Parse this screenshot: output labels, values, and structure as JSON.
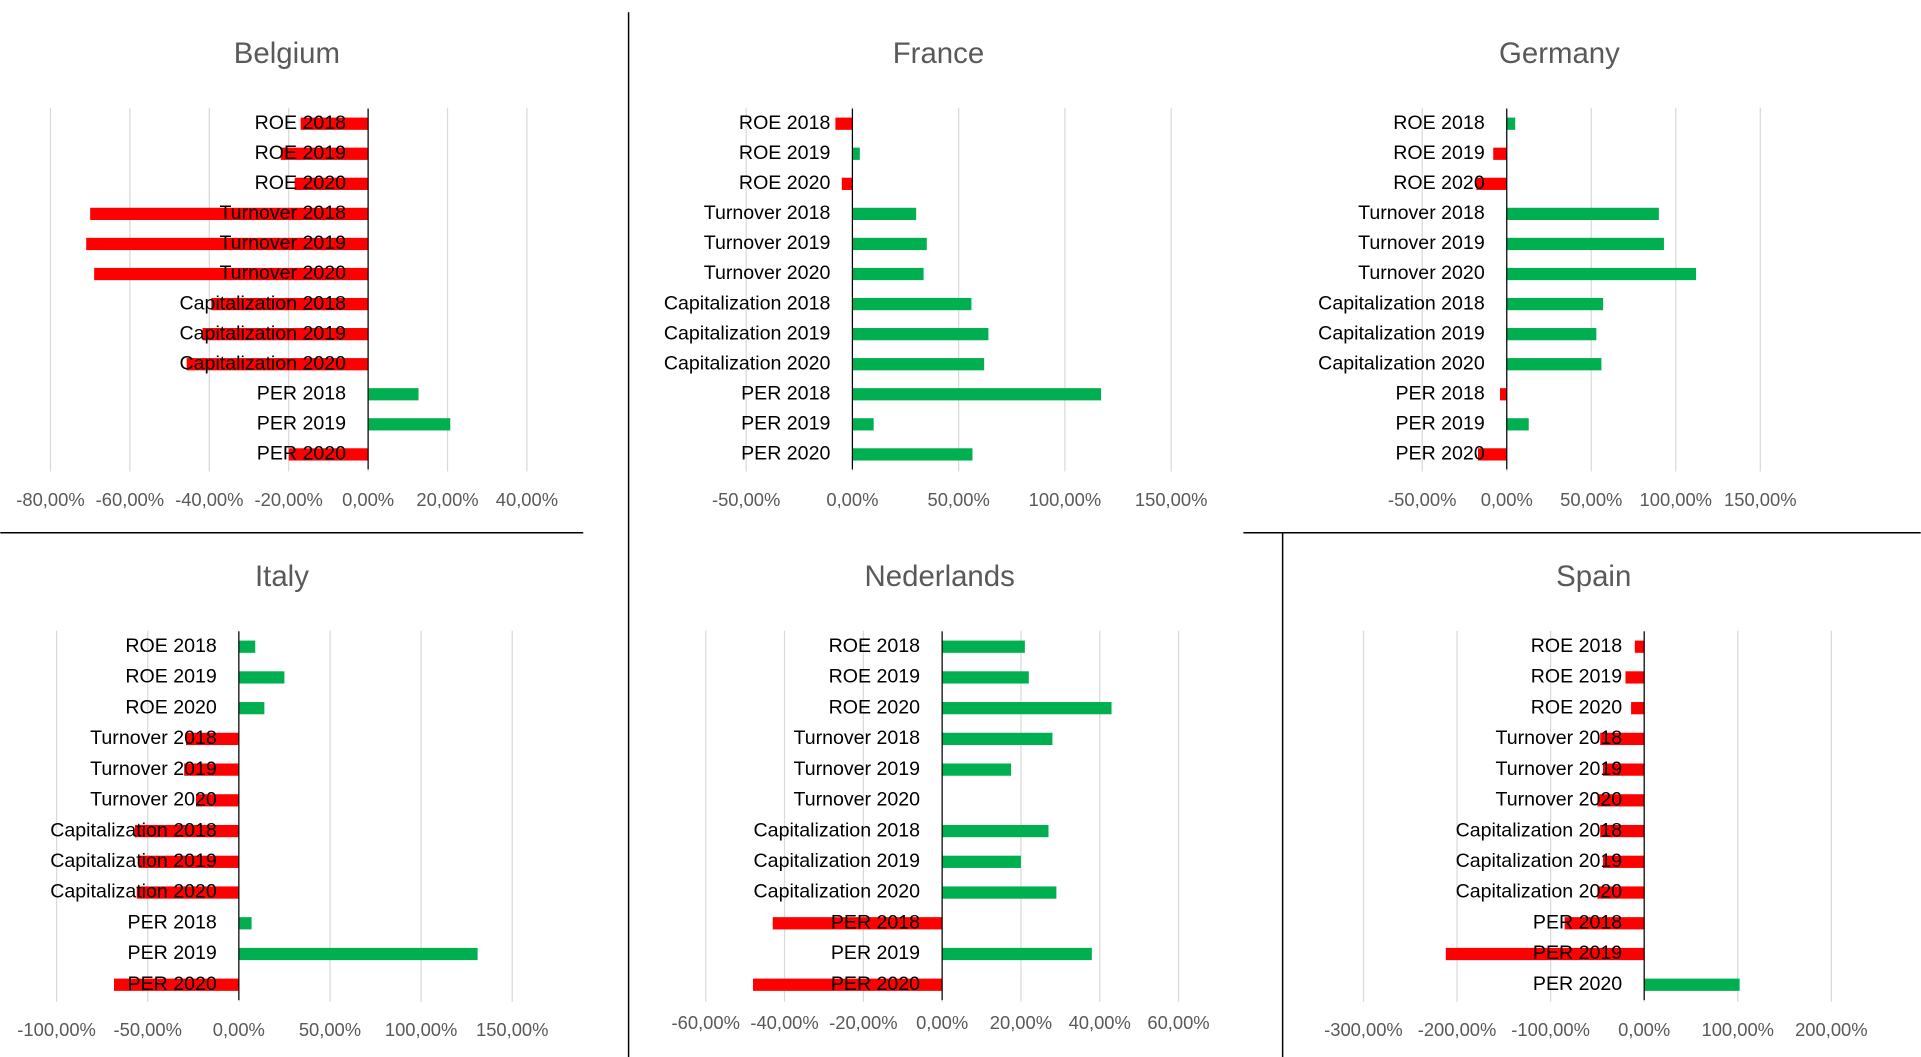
{
  "chart_data": [
    {
      "type": "bar",
      "orientation": "horizontal",
      "title": "Belgium",
      "categories": [
        "ROE 2018",
        "ROE 2019",
        "ROE 2020",
        "Turnover 2018",
        "Turnover 2019",
        "Turnover 2020",
        "Capitalization 2018",
        "Capitalization 2019",
        "Capitalization 2020",
        "PER 2018",
        "PER 2019",
        "PER 2020"
      ],
      "values": [
        -17,
        -22,
        -18.5,
        -70,
        -71,
        -69,
        -39.5,
        -41.7,
        -45.7,
        12.7,
        20.7,
        -20
      ],
      "positive_color": "#00b050",
      "negative_color": "#ff0000",
      "grid": true,
      "xlim": [
        -80,
        40
      ],
      "xticks": [
        {
          "value": -80,
          "label": "-80,00%"
        },
        {
          "value": -60,
          "label": "-60,00%"
        },
        {
          "value": -40,
          "label": "-40,00%"
        },
        {
          "value": -20,
          "label": "-20,00%"
        },
        {
          "value": 0,
          "label": "0,00%"
        },
        {
          "value": 20,
          "label": "20,00%"
        },
        {
          "value": 40,
          "label": "40,00%"
        }
      ]
    },
    {
      "type": "bar",
      "orientation": "horizontal",
      "title": "France",
      "categories": [
        "ROE 2018",
        "ROE 2019",
        "ROE 2020",
        "Turnover 2018",
        "Turnover 2019",
        "Turnover 2020",
        "Capitalization 2018",
        "Capitalization 2019",
        "Capitalization 2020",
        "PER 2018",
        "PER 2019",
        "PER 2020"
      ],
      "values": [
        -8,
        3.5,
        -5,
        30,
        35,
        33.5,
        56,
        64,
        62,
        117,
        10,
        56.5
      ],
      "positive_color": "#00b050",
      "negative_color": "#ff0000",
      "grid": true,
      "xlim": [
        -50,
        150
      ],
      "xticks": [
        {
          "value": -50,
          "label": "-50,00%"
        },
        {
          "value": 0,
          "label": "0,00%"
        },
        {
          "value": 50,
          "label": "50,00%"
        },
        {
          "value": 100,
          "label": "100,00%"
        },
        {
          "value": 150,
          "label": "150,00%"
        }
      ]
    },
    {
      "type": "bar",
      "orientation": "horizontal",
      "title": "Germany",
      "categories": [
        "ROE 2018",
        "ROE 2019",
        "ROE 2020",
        "Turnover 2018",
        "Turnover 2019",
        "Turnover 2020",
        "Capitalization 2018",
        "Capitalization 2019",
        "Capitalization 2020",
        "PER 2018",
        "PER 2019",
        "PER 2020"
      ],
      "values": [
        5,
        -8,
        -18,
        90,
        93,
        112,
        57,
        53,
        56,
        -4,
        13,
        -17
      ],
      "positive_color": "#00b050",
      "negative_color": "#ff0000",
      "grid": true,
      "xlim": [
        -50,
        150
      ],
      "xticks": [
        {
          "value": -50,
          "label": "-50,00%"
        },
        {
          "value": 0,
          "label": "0,00%"
        },
        {
          "value": 50,
          "label": "50,00%"
        },
        {
          "value": 100,
          "label": "100,00%"
        },
        {
          "value": 150,
          "label": "150,00%"
        }
      ]
    },
    {
      "type": "bar",
      "orientation": "horizontal",
      "title": "Italy",
      "categories": [
        "ROE 2018",
        "ROE 2019",
        "ROE 2020",
        "Turnover 2018",
        "Turnover 2019",
        "Turnover 2020",
        "Capitalization 2018",
        "Capitalization 2019",
        "Capitalization 2020",
        "PER 2018",
        "PER 2019",
        "PER 2020"
      ],
      "values": [
        9,
        25,
        14,
        -29,
        -30,
        -23.5,
        -57,
        -55,
        -56,
        7,
        131,
        -68.5
      ],
      "positive_color": "#00b050",
      "negative_color": "#ff0000",
      "grid": true,
      "xlim": [
        -100,
        150
      ],
      "xticks": [
        {
          "value": -100,
          "label": "-100,00%"
        },
        {
          "value": -50,
          "label": "-50,00%"
        },
        {
          "value": 0,
          "label": "0,00%"
        },
        {
          "value": 50,
          "label": "50,00%"
        },
        {
          "value": 100,
          "label": "100,00%"
        },
        {
          "value": 150,
          "label": "150,00%"
        }
      ]
    },
    {
      "type": "bar",
      "orientation": "horizontal",
      "title": "Nederlands",
      "categories": [
        "ROE 2018",
        "ROE 2019",
        "ROE 2020",
        "Turnover 2018",
        "Turnover 2019",
        "Turnover 2020",
        "Capitalization 2018",
        "Capitalization 2019",
        "Capitalization 2020",
        "PER 2018",
        "PER 2019",
        "PER 2020"
      ],
      "values": [
        21,
        22,
        43,
        28,
        17.5,
        0,
        27,
        20,
        29,
        -43,
        38,
        -48
      ],
      "positive_color": "#00b050",
      "negative_color": "#ff0000",
      "grid": true,
      "xlim": [
        -60,
        60
      ],
      "xticks": [
        {
          "value": -60,
          "label": "-60,00%"
        },
        {
          "value": -40,
          "label": "-40,00%"
        },
        {
          "value": -20,
          "label": "-20,00%"
        },
        {
          "value": 0,
          "label": "0,00%"
        },
        {
          "value": 20,
          "label": "20,00%"
        },
        {
          "value": 40,
          "label": "40,00%"
        },
        {
          "value": 60,
          "label": "60,00%"
        }
      ]
    },
    {
      "type": "bar",
      "orientation": "horizontal",
      "title": "Spain",
      "categories": [
        "ROE 2018",
        "ROE 2019",
        "ROE 2020",
        "Turnover 2018",
        "Turnover 2019",
        "Turnover 2020",
        "Capitalization 2018",
        "Capitalization 2019",
        "Capitalization 2020",
        "PER 2018",
        "PER 2019",
        "PER 2020"
      ],
      "values": [
        -10,
        -20,
        -14,
        -47,
        -44,
        -50,
        -47,
        -44,
        -50,
        -85,
        -212,
        102
      ],
      "positive_color": "#00b050",
      "negative_color": "#ff0000",
      "grid": true,
      "xlim": [
        -300,
        200
      ],
      "xticks": [
        {
          "value": -300,
          "label": "-300,00%"
        },
        {
          "value": -200,
          "label": "-200,00%"
        },
        {
          "value": -100,
          "label": "-100,00%"
        },
        {
          "value": 0,
          "label": "0,00%"
        },
        {
          "value": 100,
          "label": "100,00%"
        },
        {
          "value": 200,
          "label": "200,00%"
        }
      ]
    }
  ]
}
